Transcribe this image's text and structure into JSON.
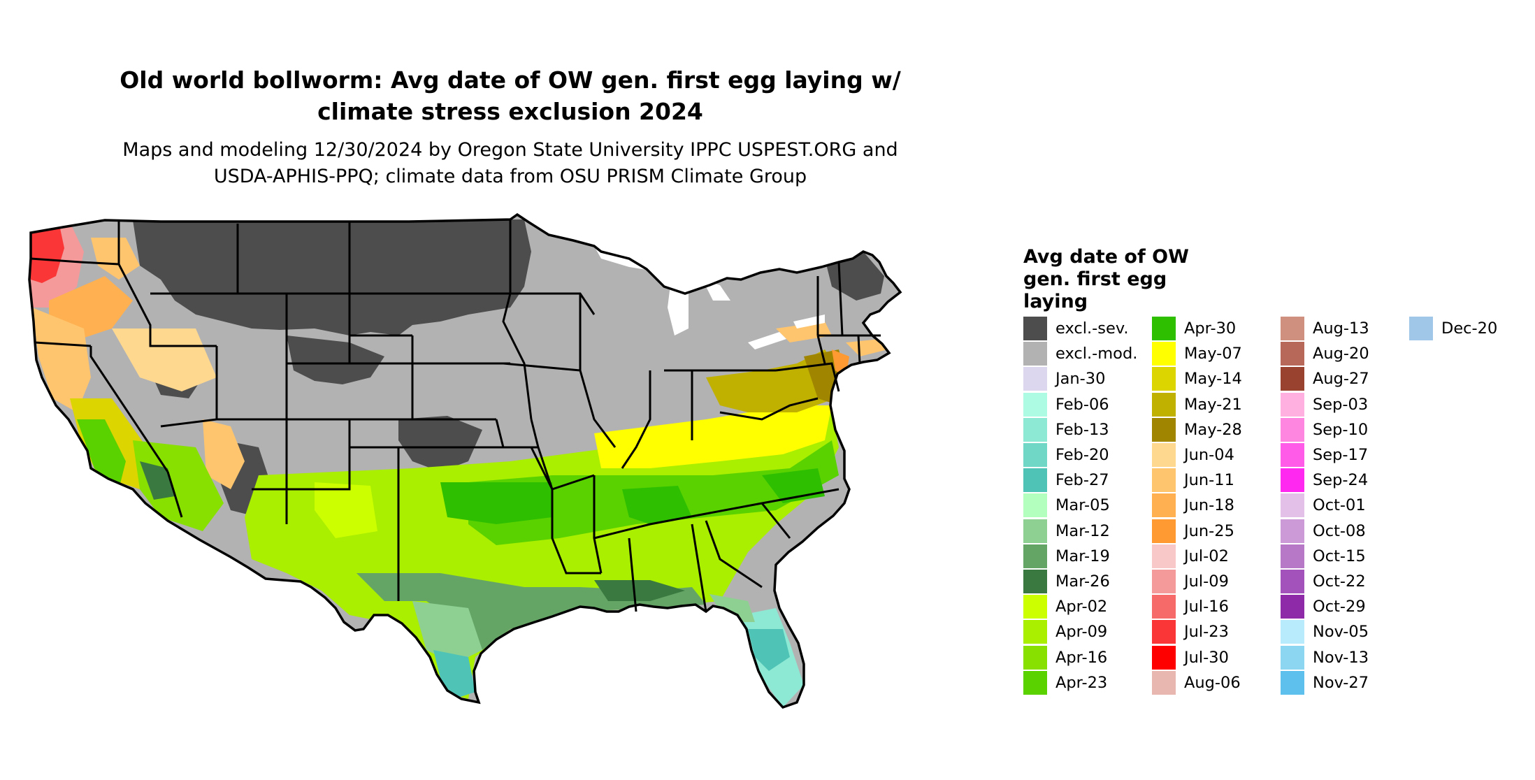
{
  "title_lines": [
    "Old world bollworm: Avg date of OW gen. first egg laying w/",
    "climate stress exclusion 2024"
  ],
  "subtitle_lines": [
    "Maps and modeling 12/30/2024 by Oregon State University IPPC USPEST.ORG and",
    "USDA-APHIS-PPQ; climate data from OSU PRISM Climate Group"
  ],
  "legend": {
    "title_lines": [
      "Avg date of OW",
      "gen. first egg",
      "laying"
    ],
    "columns": [
      [
        {
          "label": "excl.-sev.",
          "color": "#4d4d4d"
        },
        {
          "label": "excl.-mod.",
          "color": "#b2b2b2"
        },
        {
          "label": "Jan-30",
          "color": "#dcd6ee"
        },
        {
          "label": "Feb-06",
          "color": "#aefbe3"
        },
        {
          "label": "Feb-13",
          "color": "#8ee9d4"
        },
        {
          "label": "Feb-20",
          "color": "#70d7c6"
        },
        {
          "label": "Feb-27",
          "color": "#4fc4b6"
        },
        {
          "label": "Mar-05",
          "color": "#b3ffbd"
        },
        {
          "label": "Mar-12",
          "color": "#8ed092"
        },
        {
          "label": "Mar-19",
          "color": "#64a566"
        },
        {
          "label": "Mar-26",
          "color": "#3a7a40"
        },
        {
          "label": "Apr-02",
          "color": "#ccff00"
        },
        {
          "label": "Apr-09",
          "color": "#aaee00"
        },
        {
          "label": "Apr-16",
          "color": "#88e000"
        },
        {
          "label": "Apr-23",
          "color": "#5ad200"
        }
      ],
      [
        {
          "label": "Apr-30",
          "color": "#2ec000"
        },
        {
          "label": "May-07",
          "color": "#ffff00"
        },
        {
          "label": "May-14",
          "color": "#dcd500"
        },
        {
          "label": "May-21",
          "color": "#c0b000"
        },
        {
          "label": "May-28",
          "color": "#a08500"
        },
        {
          "label": "Jun-04",
          "color": "#ffd890"
        },
        {
          "label": "Jun-11",
          "color": "#ffc56e"
        },
        {
          "label": "Jun-18",
          "color": "#ffb050"
        },
        {
          "label": "Jun-25",
          "color": "#ff9a32"
        },
        {
          "label": "Jul-02",
          "color": "#f8c8c8"
        },
        {
          "label": "Jul-09",
          "color": "#f49a9a"
        },
        {
          "label": "Jul-16",
          "color": "#f66a6a"
        },
        {
          "label": "Jul-23",
          "color": "#fa3636"
        },
        {
          "label": "Jul-30",
          "color": "#ff0000"
        },
        {
          "label": "Aug-06",
          "color": "#e8b8b0"
        }
      ],
      [
        {
          "label": "Aug-13",
          "color": "#d09080"
        },
        {
          "label": "Aug-20",
          "color": "#b86858"
        },
        {
          "label": "Aug-27",
          "color": "#9a4230"
        },
        {
          "label": "Sep-03",
          "color": "#ffb0e0"
        },
        {
          "label": "Sep-10",
          "color": "#ff86e0"
        },
        {
          "label": "Sep-17",
          "color": "#ff5ae8"
        },
        {
          "label": "Sep-24",
          "color": "#ff28f0"
        },
        {
          "label": "Oct-01",
          "color": "#e2c0e8"
        },
        {
          "label": "Oct-08",
          "color": "#cc9ad6"
        },
        {
          "label": "Oct-15",
          "color": "#b878c8"
        },
        {
          "label": "Oct-22",
          "color": "#a252ba"
        },
        {
          "label": "Oct-29",
          "color": "#8e2aa8"
        },
        {
          "label": "Nov-05",
          "color": "#b8ecfc"
        },
        {
          "label": "Nov-13",
          "color": "#8cd6f2"
        },
        {
          "label": "Nov-27",
          "color": "#5ec0ec"
        }
      ],
      [
        {
          "label": "Dec-20",
          "color": "#a0c6e8"
        }
      ]
    ]
  }
}
